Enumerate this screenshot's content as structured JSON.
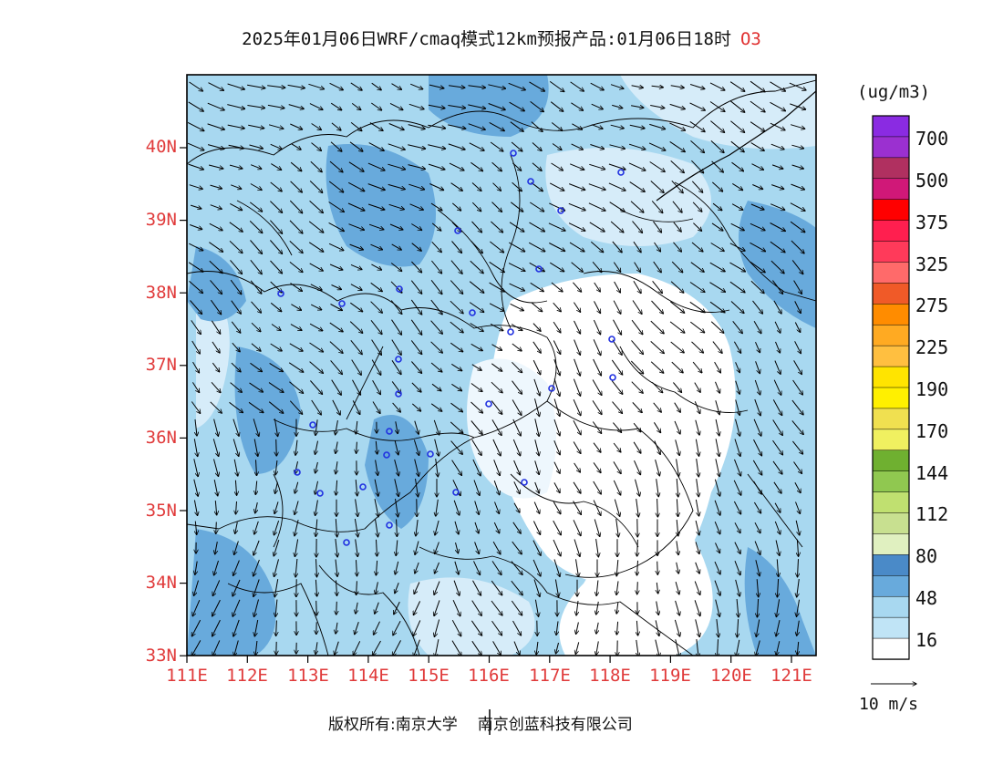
{
  "header": {
    "title": "2025年01月06日WRF/cmaq模式12km预报产品:01月06日18时",
    "species": "O3"
  },
  "map": {
    "lat_labels": [
      "40N",
      "39N",
      "38N",
      "37N",
      "36N",
      "35N",
      "34N",
      "33N"
    ],
    "lon_labels": [
      "111E",
      "112E",
      "113E",
      "114E",
      "115E",
      "116E",
      "117E",
      "118E",
      "119E",
      "120E",
      "121E"
    ],
    "lat_range": [
      33,
      41
    ],
    "lon_range": [
      111,
      121.4
    ],
    "wind_field": "prevailing north-west to north winds, turning southward in the south-east",
    "station_markers": 22
  },
  "colorbar": {
    "unit": "(ug/m3)",
    "labels": [
      "700",
      "500",
      "375",
      "325",
      "275",
      "225",
      "190",
      "170",
      "144",
      "112",
      "80",
      "48",
      "16"
    ],
    "colors_top_to_bottom": [
      "#8a2be2",
      "#9b30d0",
      "#b03060",
      "#d01878",
      "#ff0000",
      "#ff1f4f",
      "#ff3a5a",
      "#ff6a6a",
      "#f05a28",
      "#ff8c00",
      "#ffaa22",
      "#ffbf40",
      "#ffe400",
      "#fff000",
      "#f0e050",
      "#f0f060",
      "#6fb030",
      "#90c850",
      "#c0e070",
      "#c8e090",
      "#e0f0c0",
      "#4a8ac8",
      "#68aadc",
      "#a8d8f0",
      "#c0e4f6",
      "#ffffff"
    ]
  },
  "vector_reference": "10 m/s",
  "footer": {
    "copyright_prefix": "版权所有:",
    "org1": "南京大学",
    "org2": "南京创蓝科技有限公司"
  }
}
